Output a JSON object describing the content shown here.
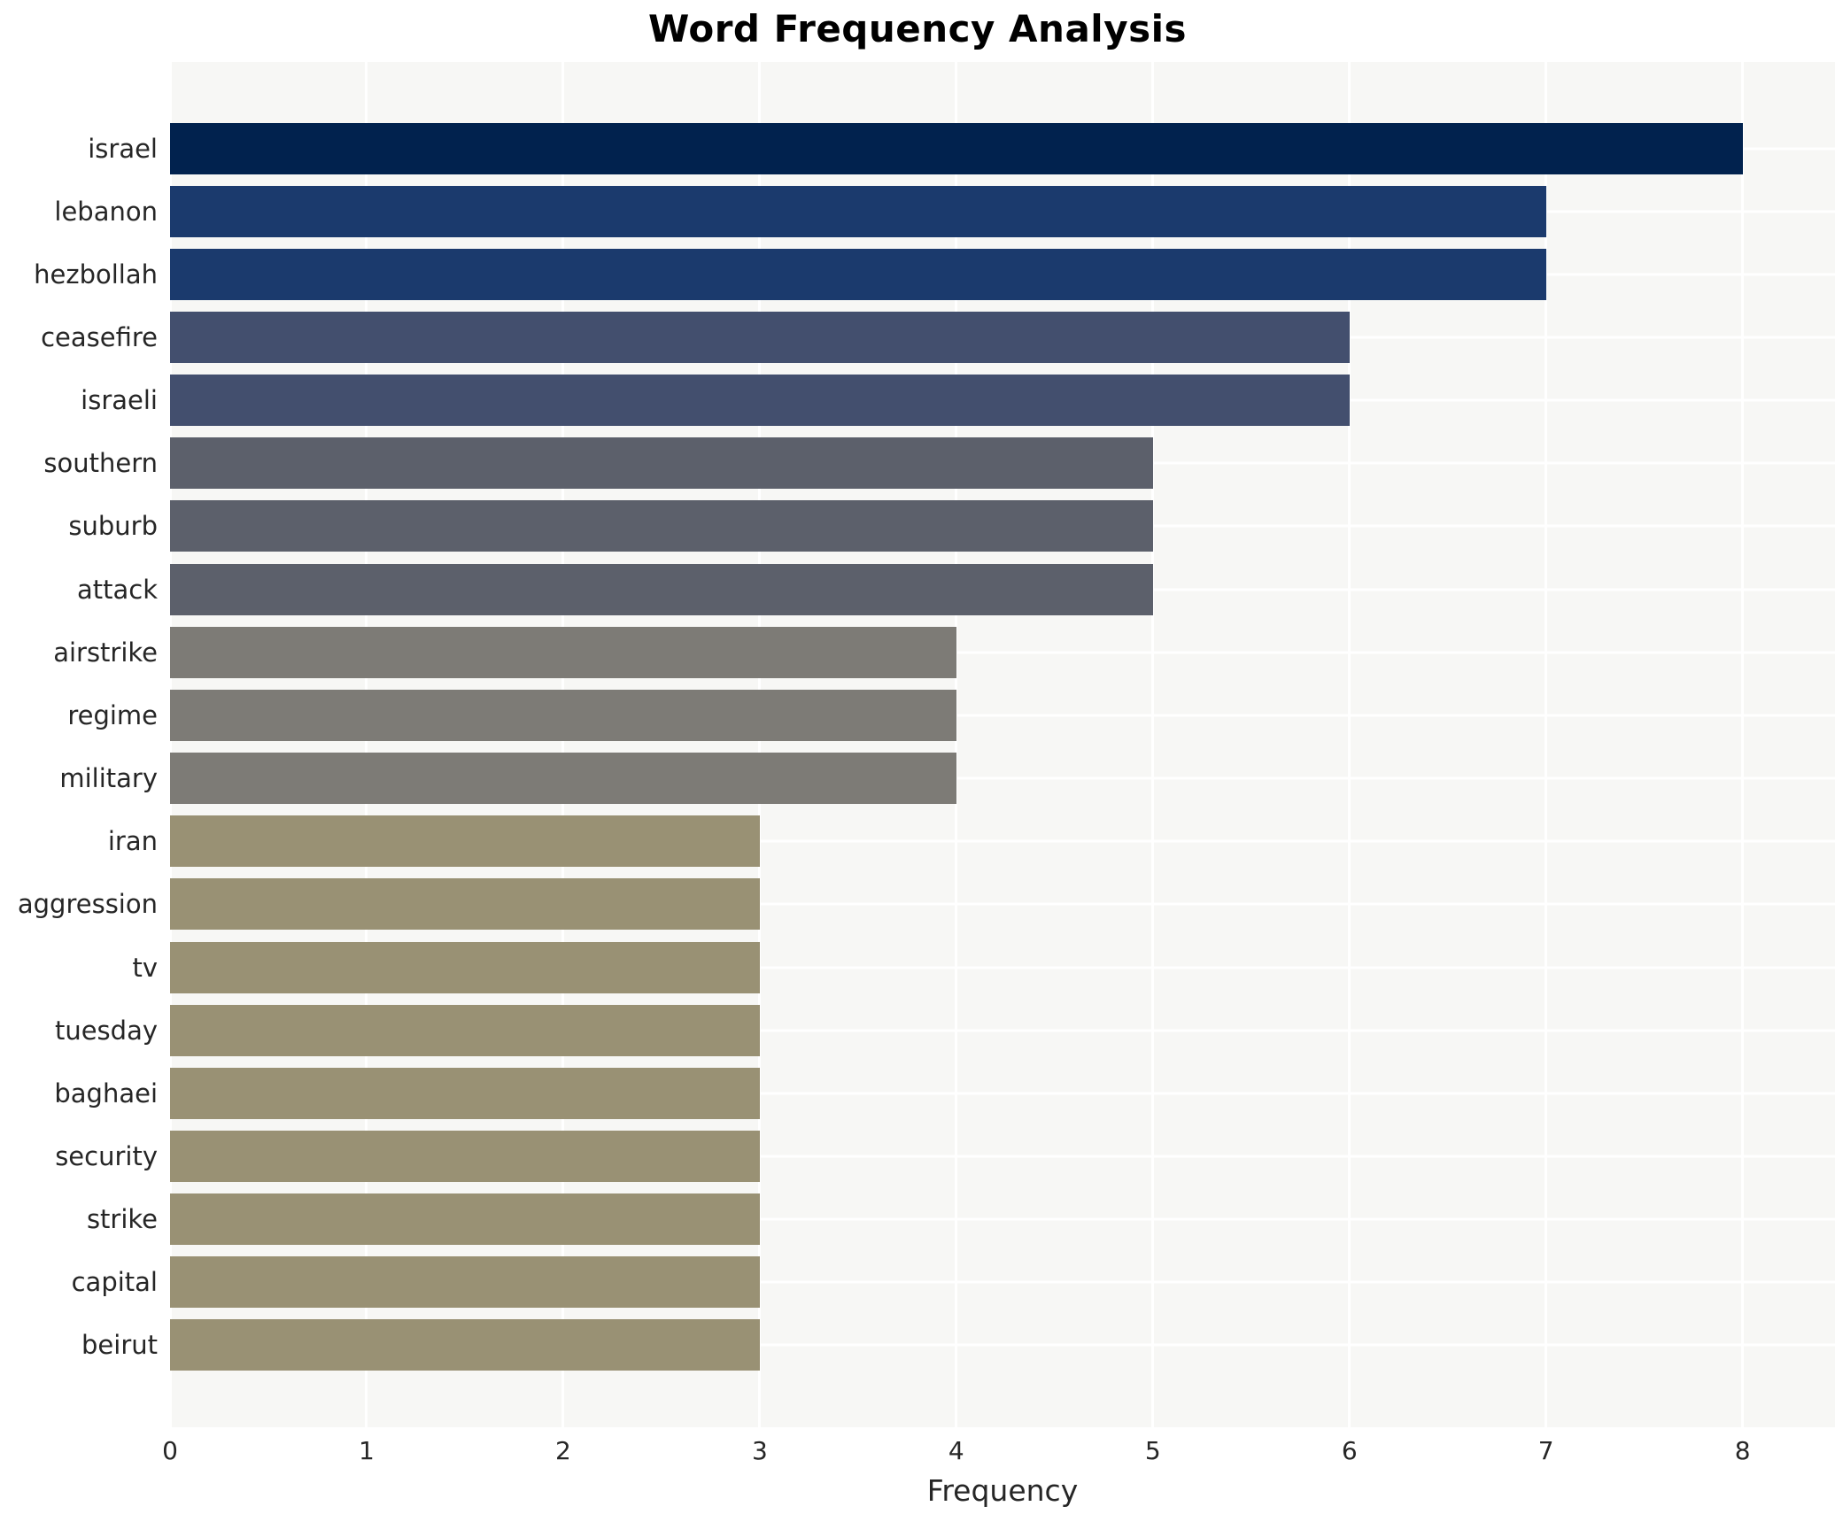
{
  "title": "Word Frequency Analysis",
  "chart_data": {
    "type": "bar",
    "orientation": "horizontal",
    "title": "Word Frequency Analysis",
    "xlabel": "Frequency",
    "ylabel": "",
    "categories": [
      "israel",
      "lebanon",
      "hezbollah",
      "ceasefire",
      "israeli",
      "southern",
      "suburb",
      "attack",
      "airstrike",
      "regime",
      "military",
      "iran",
      "aggression",
      "tv",
      "tuesday",
      "baghaei",
      "security",
      "strike",
      "capital",
      "beirut"
    ],
    "values": [
      8,
      7,
      7,
      6,
      6,
      5,
      5,
      5,
      4,
      4,
      4,
      3,
      3,
      3,
      3,
      3,
      3,
      3,
      3,
      3
    ],
    "bar_colors": [
      "#01224e",
      "#1b3a6d",
      "#1b3a6d",
      "#434f6e",
      "#434f6e",
      "#5c606b",
      "#5c606b",
      "#5c606b",
      "#7d7b76",
      "#7d7b76",
      "#7d7b76",
      "#999174",
      "#999174",
      "#999174",
      "#999174",
      "#999174",
      "#999174",
      "#999174",
      "#999174",
      "#999174"
    ],
    "value_color_scale": {
      "8": "#01224e",
      "7": "#1b3a6d",
      "6": "#434f6e",
      "5": "#5c606b",
      "4": "#7d7b76",
      "3": "#999174"
    },
    "xticks": [
      0,
      1,
      2,
      3,
      4,
      5,
      6,
      7,
      8
    ],
    "xlim": [
      0,
      8.47
    ],
    "grid": true,
    "legend": false,
    "plot_background": "#f7f7f5",
    "grid_color": "#ffffff",
    "text_color": "#262626"
  }
}
